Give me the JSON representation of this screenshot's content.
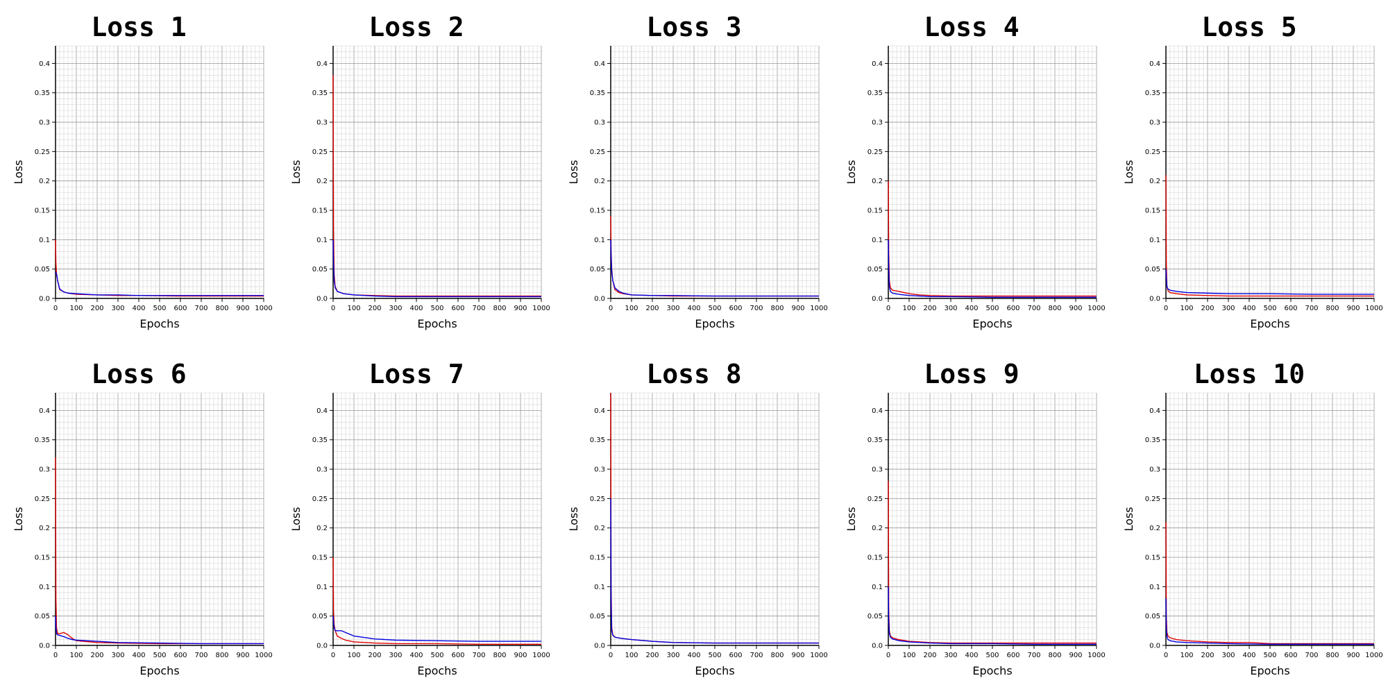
{
  "colors": {
    "train": "#e00000",
    "val": "#0000e0",
    "grid_major": "#999999",
    "grid_minor": "#d6d6d6"
  },
  "chart_data": [
    {
      "type": "line",
      "title": "Loss 1",
      "xlabel": "Epochs",
      "ylabel": "Loss",
      "xlim": [
        0,
        1000
      ],
      "ylim": [
        0,
        0.43
      ],
      "xticks": [
        0,
        100,
        200,
        300,
        400,
        500,
        600,
        700,
        800,
        900,
        1000
      ],
      "yticks": [
        0,
        0.05,
        0.1,
        0.15,
        0.2,
        0.25,
        0.3,
        0.35,
        0.4
      ],
      "ytick_labels": [
        "0.0",
        "0.05",
        "0.1",
        "0.15",
        "0.2",
        "0.25",
        "0.3",
        "0.35",
        "0.4"
      ],
      "grid": true,
      "series": [
        {
          "color": "red",
          "x": [
            0,
            2,
            5,
            10,
            20,
            40,
            60,
            100,
            200,
            300,
            400,
            600,
            800,
            1000
          ],
          "y": [
            0.1,
            0.06,
            0.04,
            0.03,
            0.015,
            0.011,
            0.009,
            0.007,
            0.006,
            0.005,
            0.005,
            0.004,
            0.004,
            0.004
          ]
        },
        {
          "color": "blue",
          "x": [
            0,
            3,
            6,
            10,
            20,
            40,
            60,
            100,
            200,
            300,
            400,
            600,
            800,
            1000
          ],
          "y": [
            0.045,
            0.043,
            0.04,
            0.03,
            0.016,
            0.011,
            0.009,
            0.008,
            0.006,
            0.006,
            0.005,
            0.005,
            0.005,
            0.005
          ]
        }
      ]
    },
    {
      "type": "line",
      "title": "Loss 2",
      "xlabel": "Epochs",
      "ylabel": "Loss",
      "xlim": [
        0,
        1000
      ],
      "ylim": [
        0,
        0.43
      ],
      "xticks": [
        0,
        100,
        200,
        300,
        400,
        500,
        600,
        700,
        800,
        900,
        1000
      ],
      "yticks": [
        0,
        0.05,
        0.1,
        0.15,
        0.2,
        0.25,
        0.3,
        0.35,
        0.4
      ],
      "ytick_labels": [
        "0.0",
        "0.05",
        "0.1",
        "0.15",
        "0.2",
        "0.25",
        "0.3",
        "0.35",
        "0.4"
      ],
      "grid": true,
      "series": [
        {
          "color": "red",
          "x": [
            0,
            2,
            5,
            10,
            20,
            50,
            100,
            200,
            300,
            500,
            700,
            1000
          ],
          "y": [
            0.38,
            0.12,
            0.04,
            0.02,
            0.012,
            0.008,
            0.006,
            0.005,
            0.004,
            0.004,
            0.004,
            0.004
          ]
        },
        {
          "color": "blue",
          "x": [
            0,
            2,
            5,
            10,
            20,
            50,
            100,
            200,
            300,
            500,
            700,
            1000
          ],
          "y": [
            0.1,
            0.06,
            0.03,
            0.018,
            0.012,
            0.008,
            0.006,
            0.004,
            0.003,
            0.003,
            0.003,
            0.003
          ]
        }
      ]
    },
    {
      "type": "line",
      "title": "Loss 3",
      "xlabel": "Epochs",
      "ylabel": "Loss",
      "xlim": [
        0,
        1000
      ],
      "ylim": [
        0,
        0.43
      ],
      "xticks": [
        0,
        100,
        200,
        300,
        400,
        500,
        600,
        700,
        800,
        900,
        1000
      ],
      "yticks": [
        0,
        0.05,
        0.1,
        0.15,
        0.2,
        0.25,
        0.3,
        0.35,
        0.4
      ],
      "ytick_labels": [
        "0.0",
        "0.05",
        "0.1",
        "0.15",
        "0.2",
        "0.25",
        "0.3",
        "0.35",
        "0.4"
      ],
      "grid": true,
      "series": [
        {
          "color": "red",
          "x": [
            0,
            2,
            5,
            10,
            20,
            40,
            60,
            100,
            200,
            300,
            500,
            700,
            1000
          ],
          "y": [
            0.14,
            0.08,
            0.05,
            0.03,
            0.015,
            0.01,
            0.008,
            0.006,
            0.005,
            0.004,
            0.004,
            0.004,
            0.004
          ]
        },
        {
          "color": "blue",
          "x": [
            0,
            2,
            5,
            10,
            20,
            40,
            60,
            100,
            200,
            300,
            500,
            700,
            1000
          ],
          "y": [
            0.1,
            0.07,
            0.045,
            0.03,
            0.018,
            0.012,
            0.009,
            0.006,
            0.005,
            0.005,
            0.004,
            0.004,
            0.004
          ]
        }
      ]
    },
    {
      "type": "line",
      "title": "Loss 4",
      "xlabel": "Epochs",
      "ylabel": "Loss",
      "xlim": [
        0,
        1000
      ],
      "ylim": [
        0,
        0.43
      ],
      "xticks": [
        0,
        100,
        200,
        300,
        400,
        500,
        600,
        700,
        800,
        900,
        1000
      ],
      "yticks": [
        0,
        0.05,
        0.1,
        0.15,
        0.2,
        0.25,
        0.3,
        0.35,
        0.4
      ],
      "ytick_labels": [
        "0.0",
        "0.05",
        "0.1",
        "0.15",
        "0.2",
        "0.25",
        "0.3",
        "0.35",
        "0.4"
      ],
      "grid": true,
      "series": [
        {
          "color": "red",
          "x": [
            0,
            2,
            5,
            10,
            20,
            50,
            100,
            150,
            200,
            300,
            500,
            700,
            1000
          ],
          "y": [
            0.2,
            0.08,
            0.03,
            0.018,
            0.014,
            0.012,
            0.008,
            0.006,
            0.005,
            0.004,
            0.004,
            0.004,
            0.004
          ]
        },
        {
          "color": "blue",
          "x": [
            0,
            2,
            5,
            10,
            20,
            50,
            100,
            150,
            200,
            300,
            500,
            700,
            1000
          ],
          "y": [
            0.1,
            0.05,
            0.02,
            0.012,
            0.009,
            0.007,
            0.005,
            0.004,
            0.003,
            0.003,
            0.002,
            0.002,
            0.002
          ]
        }
      ]
    },
    {
      "type": "line",
      "title": "Loss 5",
      "xlabel": "Epochs",
      "ylabel": "Loss",
      "xlim": [
        0,
        1000
      ],
      "ylim": [
        0,
        0.43
      ],
      "xticks": [
        0,
        100,
        200,
        300,
        400,
        500,
        600,
        700,
        800,
        900,
        1000
      ],
      "yticks": [
        0,
        0.05,
        0.1,
        0.15,
        0.2,
        0.25,
        0.3,
        0.35,
        0.4
      ],
      "ytick_labels": [
        "0.0",
        "0.05",
        "0.1",
        "0.15",
        "0.2",
        "0.25",
        "0.3",
        "0.35",
        "0.4"
      ],
      "grid": true,
      "series": [
        {
          "color": "red",
          "x": [
            0,
            2,
            5,
            10,
            20,
            50,
            100,
            200,
            300,
            500,
            700,
            1000
          ],
          "y": [
            0.21,
            0.06,
            0.02,
            0.013,
            0.01,
            0.008,
            0.006,
            0.005,
            0.004,
            0.004,
            0.004,
            0.004
          ]
        },
        {
          "color": "blue",
          "x": [
            0,
            2,
            5,
            10,
            20,
            50,
            100,
            200,
            300,
            500,
            700,
            1000
          ],
          "y": [
            0.05,
            0.035,
            0.02,
            0.016,
            0.014,
            0.012,
            0.01,
            0.009,
            0.008,
            0.008,
            0.007,
            0.007
          ]
        }
      ]
    },
    {
      "type": "line",
      "title": "Loss 6",
      "xlabel": "Epochs",
      "ylabel": "Loss",
      "xlim": [
        0,
        1000
      ],
      "ylim": [
        0,
        0.43
      ],
      "xticks": [
        0,
        100,
        200,
        300,
        400,
        500,
        600,
        700,
        800,
        900,
        1000
      ],
      "yticks": [
        0,
        0.05,
        0.1,
        0.15,
        0.2,
        0.25,
        0.3,
        0.35,
        0.4
      ],
      "ytick_labels": [
        "0.0",
        "0.05",
        "0.1",
        "0.15",
        "0.2",
        "0.25",
        "0.3",
        "0.35",
        "0.4"
      ],
      "grid": true,
      "series": [
        {
          "color": "red",
          "x": [
            0,
            2,
            5,
            10,
            20,
            40,
            60,
            80,
            100,
            200,
            300,
            500,
            700,
            1000
          ],
          "y": [
            0.32,
            0.08,
            0.03,
            0.02,
            0.02,
            0.022,
            0.018,
            0.012,
            0.008,
            0.005,
            0.004,
            0.003,
            0.003,
            0.003
          ]
        },
        {
          "color": "blue",
          "x": [
            0,
            2,
            5,
            10,
            20,
            40,
            60,
            80,
            100,
            200,
            300,
            500,
            700,
            1000
          ],
          "y": [
            0.05,
            0.03,
            0.02,
            0.018,
            0.017,
            0.015,
            0.012,
            0.01,
            0.009,
            0.007,
            0.005,
            0.004,
            0.003,
            0.003
          ]
        }
      ]
    },
    {
      "type": "line",
      "title": "Loss 7",
      "xlabel": "Epochs",
      "ylabel": "Loss",
      "xlim": [
        0,
        1000
      ],
      "ylim": [
        0,
        0.43
      ],
      "xticks": [
        0,
        100,
        200,
        300,
        400,
        500,
        600,
        700,
        800,
        900,
        1000
      ],
      "yticks": [
        0,
        0.05,
        0.1,
        0.15,
        0.2,
        0.25,
        0.3,
        0.35,
        0.4
      ],
      "ytick_labels": [
        "0.0",
        "0.05",
        "0.1",
        "0.15",
        "0.2",
        "0.25",
        "0.3",
        "0.35",
        "0.4"
      ],
      "grid": true,
      "series": [
        {
          "color": "red",
          "x": [
            0,
            2,
            5,
            10,
            20,
            40,
            60,
            100,
            200,
            300,
            500,
            700,
            1000
          ],
          "y": [
            0.15,
            0.06,
            0.035,
            0.025,
            0.016,
            0.012,
            0.009,
            0.006,
            0.004,
            0.003,
            0.003,
            0.002,
            0.002
          ]
        },
        {
          "color": "blue",
          "x": [
            0,
            2,
            5,
            10,
            20,
            40,
            60,
            100,
            200,
            300,
            500,
            700,
            1000
          ],
          "y": [
            0.05,
            0.04,
            0.03,
            0.025,
            0.025,
            0.025,
            0.022,
            0.016,
            0.011,
            0.009,
            0.008,
            0.007,
            0.007
          ]
        }
      ]
    },
    {
      "type": "line",
      "title": "Loss 8",
      "xlabel": "Epochs",
      "ylabel": "Loss",
      "xlim": [
        0,
        1000
      ],
      "ylim": [
        0,
        0.43
      ],
      "xticks": [
        0,
        100,
        200,
        300,
        400,
        500,
        600,
        700,
        800,
        900,
        1000
      ],
      "yticks": [
        0,
        0.05,
        0.1,
        0.15,
        0.2,
        0.25,
        0.3,
        0.35,
        0.4
      ],
      "ytick_labels": [
        "0.0",
        "0.05",
        "0.1",
        "0.15",
        "0.2",
        "0.25",
        "0.3",
        "0.35",
        "0.4"
      ],
      "grid": true,
      "series": [
        {
          "color": "red",
          "x": [
            0,
            2,
            5,
            10,
            20,
            50,
            100,
            200,
            300,
            500,
            700,
            1000
          ],
          "y": [
            0.43,
            0.1,
            0.03,
            0.018,
            0.014,
            0.012,
            0.01,
            0.007,
            0.005,
            0.004,
            0.004,
            0.004
          ]
        },
        {
          "color": "blue",
          "x": [
            0,
            2,
            5,
            10,
            20,
            50,
            100,
            200,
            300,
            500,
            700,
            1000
          ],
          "y": [
            0.25,
            0.07,
            0.025,
            0.017,
            0.014,
            0.012,
            0.01,
            0.007,
            0.005,
            0.004,
            0.004,
            0.004
          ]
        }
      ]
    },
    {
      "type": "line",
      "title": "Loss 9",
      "xlabel": "Epochs",
      "ylabel": "Loss",
      "xlim": [
        0,
        1000
      ],
      "ylim": [
        0,
        0.43
      ],
      "xticks": [
        0,
        100,
        200,
        300,
        400,
        500,
        600,
        700,
        800,
        900,
        1000
      ],
      "yticks": [
        0,
        0.05,
        0.1,
        0.15,
        0.2,
        0.25,
        0.3,
        0.35,
        0.4
      ],
      "ytick_labels": [
        "0.0",
        "0.05",
        "0.1",
        "0.15",
        "0.2",
        "0.25",
        "0.3",
        "0.35",
        "0.4"
      ],
      "grid": true,
      "series": [
        {
          "color": "red",
          "x": [
            0,
            2,
            5,
            10,
            20,
            50,
            100,
            200,
            300,
            500,
            700,
            1000
          ],
          "y": [
            0.28,
            0.06,
            0.025,
            0.016,
            0.013,
            0.01,
            0.007,
            0.005,
            0.004,
            0.004,
            0.004,
            0.004
          ]
        },
        {
          "color": "blue",
          "x": [
            0,
            2,
            5,
            10,
            20,
            50,
            100,
            200,
            300,
            500,
            700,
            1000
          ],
          "y": [
            0.1,
            0.04,
            0.02,
            0.014,
            0.011,
            0.008,
            0.006,
            0.004,
            0.003,
            0.003,
            0.002,
            0.002
          ]
        }
      ]
    },
    {
      "type": "line",
      "title": "Loss 10",
      "xlabel": "Epochs",
      "ylabel": "Loss",
      "xlim": [
        0,
        1000
      ],
      "ylim": [
        0,
        0.43
      ],
      "xticks": [
        0,
        100,
        200,
        300,
        400,
        500,
        600,
        700,
        800,
        900,
        1000
      ],
      "yticks": [
        0,
        0.05,
        0.1,
        0.15,
        0.2,
        0.25,
        0.3,
        0.35,
        0.4
      ],
      "ytick_labels": [
        "0.0",
        "0.05",
        "0.1",
        "0.15",
        "0.2",
        "0.25",
        "0.3",
        "0.35",
        "0.4"
      ],
      "grid": true,
      "series": [
        {
          "color": "red",
          "x": [
            0,
            2,
            5,
            10,
            20,
            50,
            100,
            200,
            300,
            400,
            450,
            500,
            700,
            1000
          ],
          "y": [
            0.21,
            0.05,
            0.022,
            0.016,
            0.013,
            0.01,
            0.008,
            0.006,
            0.005,
            0.005,
            0.004,
            0.003,
            0.003,
            0.003
          ]
        },
        {
          "color": "blue",
          "x": [
            0,
            2,
            5,
            10,
            20,
            50,
            100,
            200,
            300,
            500,
            700,
            1000
          ],
          "y": [
            0.08,
            0.03,
            0.015,
            0.01,
            0.008,
            0.006,
            0.005,
            0.004,
            0.003,
            0.002,
            0.002,
            0.002
          ]
        }
      ]
    }
  ]
}
